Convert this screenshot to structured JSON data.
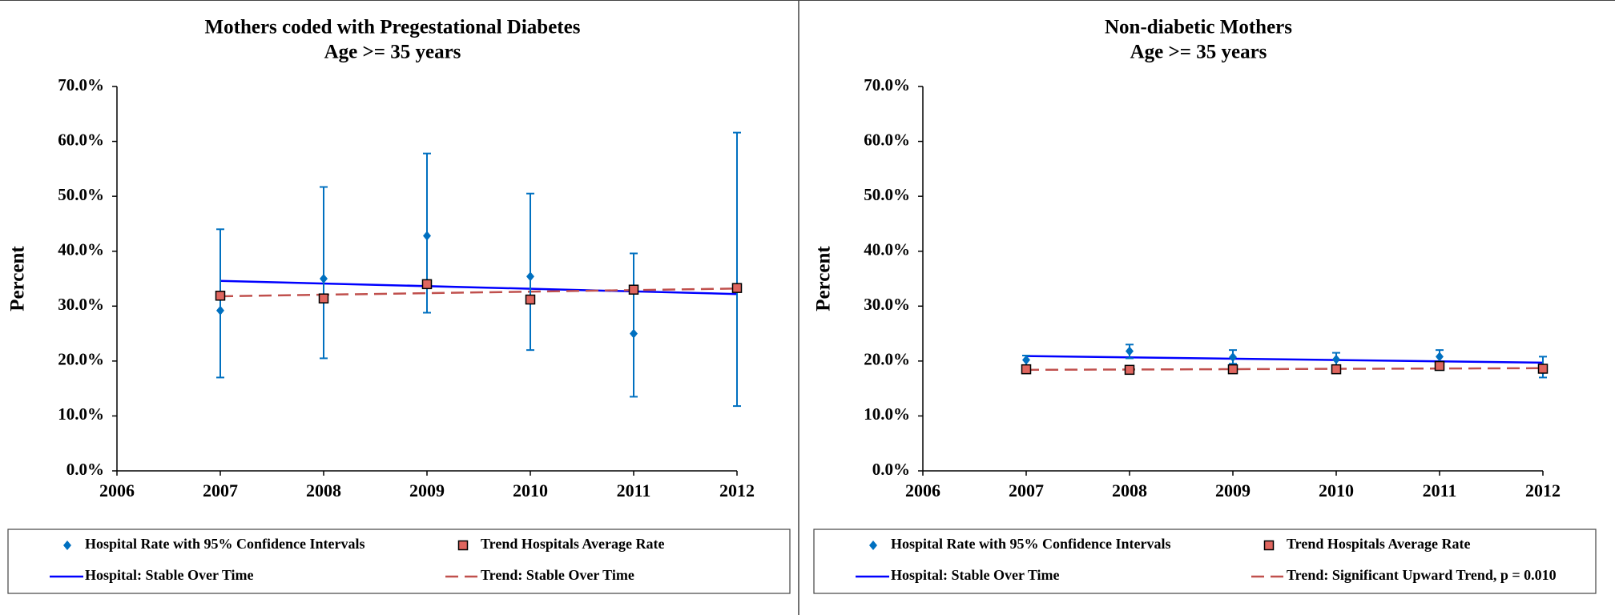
{
  "chart_data": [
    {
      "type": "errorbar",
      "title": "Mothers coded with Pregestational Diabetes",
      "subtitle": "Age >= 35 years",
      "y_label": "Percent",
      "xlim": [
        2006,
        2012
      ],
      "xticks": [
        2006,
        2007,
        2008,
        2009,
        2010,
        2011,
        2012
      ],
      "ylim": [
        0,
        70
      ],
      "yticks": [
        {
          "value": 0,
          "label": "0.0%"
        },
        {
          "value": 10,
          "label": "10.0%"
        },
        {
          "value": 20,
          "label": "20.0%"
        },
        {
          "value": 30,
          "label": "30.0%"
        },
        {
          "value": 40,
          "label": "40.0%"
        },
        {
          "value": 50,
          "label": "50.0%"
        },
        {
          "value": 60,
          "label": "60.0%"
        },
        {
          "value": 70,
          "label": "70.0%"
        }
      ],
      "series": [
        {
          "name": "Hospital Rate with 95% Confidence Intervals",
          "color": "#0070c0",
          "marker": "diamond",
          "x": [
            2007,
            2008,
            2009,
            2010,
            2011,
            2012
          ],
          "values": [
            29.2,
            35.0,
            42.8,
            35.4,
            25.0,
            33.3
          ],
          "lower": [
            17.0,
            20.5,
            28.8,
            22.0,
            13.5,
            11.8
          ],
          "upper": [
            44.0,
            51.7,
            57.8,
            50.5,
            39.6,
            61.6
          ]
        },
        {
          "name": "Trend Hospitals Average Rate",
          "color": "#c0504d",
          "marker": "square",
          "x": [
            2007,
            2008,
            2009,
            2010,
            2011,
            2012
          ],
          "values": [
            31.9,
            31.4,
            34.0,
            31.2,
            33.0,
            33.3
          ]
        },
        {
          "name": "Hospital: Stable Over Time",
          "color": "#0000ff",
          "line": "solid",
          "x": [
            2007,
            2012
          ],
          "values": [
            34.6,
            32.2
          ]
        },
        {
          "name": "Trend: Stable Over Time",
          "color": "#c0504d",
          "line": "dashed",
          "x": [
            2007,
            2012
          ],
          "values": [
            31.8,
            33.2
          ]
        }
      ]
    },
    {
      "type": "errorbar",
      "title": "Non-diabetic Mothers",
      "subtitle": "Age >= 35 years",
      "y_label": "Percent",
      "xlim": [
        2006,
        2012
      ],
      "xticks": [
        2006,
        2007,
        2008,
        2009,
        2010,
        2011,
        2012
      ],
      "ylim": [
        0,
        70
      ],
      "yticks": [
        {
          "value": 0,
          "label": "0.0%"
        },
        {
          "value": 10,
          "label": "10.0%"
        },
        {
          "value": 20,
          "label": "20.0%"
        },
        {
          "value": 30,
          "label": "30.0%"
        },
        {
          "value": 40,
          "label": "40.0%"
        },
        {
          "value": 50,
          "label": "50.0%"
        },
        {
          "value": 60,
          "label": "60.0%"
        },
        {
          "value": 70,
          "label": "70.0%"
        }
      ],
      "series": [
        {
          "name": "Hospital Rate with 95% Confidence Intervals",
          "color": "#0070c0",
          "marker": "diamond",
          "x": [
            2007,
            2008,
            2009,
            2010,
            2011,
            2012
          ],
          "values": [
            20.2,
            21.8,
            20.7,
            20.3,
            20.8,
            18.3
          ],
          "lower": [
            19.2,
            20.5,
            19.5,
            19.0,
            19.8,
            17.0
          ],
          "upper": [
            21.0,
            23.0,
            22.0,
            21.5,
            22.0,
            20.8
          ]
        },
        {
          "name": "Trend Hospitals Average Rate",
          "color": "#c0504d",
          "marker": "square",
          "x": [
            2007,
            2008,
            2009,
            2010,
            2011,
            2012
          ],
          "values": [
            18.5,
            18.4,
            18.5,
            18.5,
            19.1,
            18.6
          ]
        },
        {
          "name": "Hospital: Stable Over Time",
          "color": "#0000ff",
          "line": "solid",
          "x": [
            2007,
            2012
          ],
          "values": [
            20.9,
            19.7
          ]
        },
        {
          "name": "Trend: Significant Upward Trend, p = 0.010",
          "color": "#c0504d",
          "line": "dashed",
          "x": [
            2007,
            2012
          ],
          "values": [
            18.4,
            18.7
          ]
        }
      ]
    }
  ]
}
